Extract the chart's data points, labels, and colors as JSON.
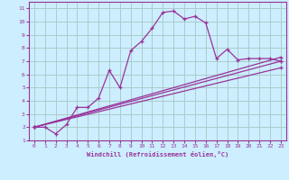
{
  "title": "",
  "xlabel": "Windchill (Refroidissement éolien,°C)",
  "bg_color": "#cceeff",
  "grid_color": "#aacccc",
  "line_color": "#993399",
  "xlim": [
    -0.5,
    23.5
  ],
  "ylim": [
    1,
    11.5
  ],
  "xticks": [
    0,
    1,
    2,
    3,
    4,
    5,
    6,
    7,
    8,
    9,
    10,
    11,
    12,
    13,
    14,
    15,
    16,
    17,
    18,
    19,
    20,
    21,
    22,
    23
  ],
  "yticks": [
    1,
    2,
    3,
    4,
    5,
    6,
    7,
    8,
    9,
    10,
    11
  ],
  "series1_x": [
    0,
    1,
    2,
    3,
    4,
    5,
    6,
    7,
    8,
    9,
    10,
    11,
    12,
    13,
    14,
    15,
    16,
    17,
    18,
    19,
    20,
    21,
    22,
    23
  ],
  "series1_y": [
    2,
    2,
    1.5,
    2.2,
    3.5,
    3.5,
    4.2,
    6.3,
    5.0,
    7.8,
    8.5,
    9.5,
    10.7,
    10.8,
    10.2,
    10.4,
    9.9,
    7.2,
    7.9,
    7.1,
    7.2,
    7.2,
    7.2,
    7.0
  ],
  "series2_x": [
    0,
    23
  ],
  "series2_y": [
    2,
    7.0
  ],
  "series3_x": [
    0,
    23
  ],
  "series3_y": [
    2,
    6.5
  ],
  "series4_x": [
    0,
    23
  ],
  "series4_y": [
    2,
    7.3
  ]
}
